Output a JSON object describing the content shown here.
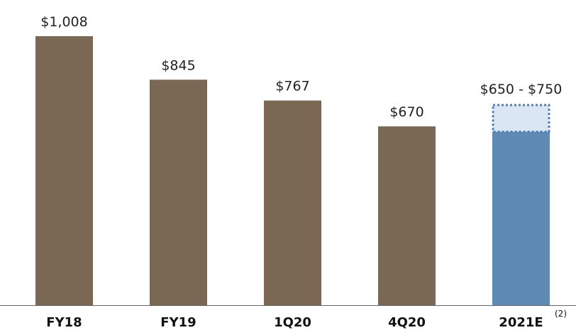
{
  "colors": {
    "actual_bar": "#7a6855",
    "estimate_bar": "#5f8ab4",
    "estimate_range_fill": "#dbe6f5",
    "estimate_range_border": "#4f7fb1",
    "axis": "#666666"
  },
  "chart_data": {
    "type": "bar",
    "title": "",
    "xlabel": "",
    "ylabel": "",
    "ylim": [
      0,
      1008
    ],
    "grid": false,
    "categories": [
      "FY18",
      "FY19",
      "1Q20",
      "4Q20",
      "2021E"
    ],
    "values": [
      1008,
      845,
      767,
      670,
      650
    ],
    "value_labels": [
      "$1,008",
      "$845",
      "$767",
      "$670",
      "$650 - $750"
    ],
    "estimate": {
      "category": "2021E",
      "low": 650,
      "high": 750
    },
    "footnote_marker": "(2)"
  }
}
